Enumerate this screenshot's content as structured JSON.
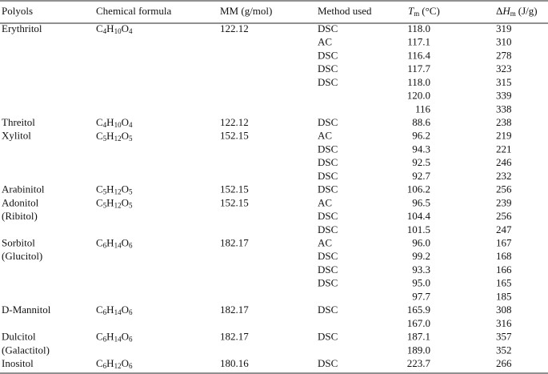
{
  "header": {
    "polyols": "Polyols",
    "formula": "Chemical formula",
    "mm": "MM (g/mol)",
    "method": "Method used",
    "tm": {
      "symbol": "T",
      "sub": "m",
      "unit": "(°C)"
    },
    "dh": {
      "prefix": "Δ",
      "symbol": "H",
      "sub": "m",
      "unit": "(J/g)"
    }
  },
  "table": {
    "rows": [
      {
        "polyol": "Erythritol",
        "formula": [
          "C",
          "4",
          "H",
          "10",
          "O",
          "4"
        ],
        "mm": "122.12",
        "method": "DSC",
        "tm": "118.0",
        "dh": "319"
      },
      {
        "method": "AC",
        "tm": "117.1",
        "dh": "310"
      },
      {
        "method": "DSC",
        "tm": "116.4",
        "dh": "278"
      },
      {
        "method": "DSC",
        "tm": "117.7",
        "dh": "323"
      },
      {
        "method": "DSC",
        "tm": "118.0",
        "dh": "315"
      },
      {
        "tm": "120.0",
        "dh": "339"
      },
      {
        "tm": "116",
        "dh": "338"
      },
      {
        "polyol": "Threitol",
        "formula": [
          "C",
          "4",
          "H",
          "10",
          "O",
          "4"
        ],
        "mm": "122.12",
        "method": "DSC",
        "tm": "88.6",
        "dh": "238"
      },
      {
        "polyol": "Xylitol",
        "formula": [
          "C",
          "5",
          "H",
          "12",
          "O",
          "5"
        ],
        "mm": "152.15",
        "method": "AC",
        "tm": "96.2",
        "dh": "219"
      },
      {
        "method": "DSC",
        "tm": "94.3",
        "dh": "221"
      },
      {
        "method": "DSC",
        "tm": "92.5",
        "dh": "246"
      },
      {
        "method": "DSC",
        "tm": "92.7",
        "dh": "232"
      },
      {
        "polyol": "Arabinitol",
        "formula": [
          "C",
          "5",
          "H",
          "12",
          "O",
          "5"
        ],
        "mm": "152.15",
        "method": "DSC",
        "tm": "106.2",
        "dh": "256"
      },
      {
        "polyol": "Adonitol",
        "formula": [
          "C",
          "5",
          "H",
          "12",
          "O",
          "5"
        ],
        "mm": "152.15",
        "method": "AC",
        "tm": "96.5",
        "dh": "239"
      },
      {
        "polyol": "(Ribitol)",
        "method": "DSC",
        "tm": "104.4",
        "dh": "256"
      },
      {
        "method": "DSC",
        "tm": "101.5",
        "dh": "247"
      },
      {
        "polyol": "Sorbitol",
        "formula": [
          "C",
          "6",
          "H",
          "14",
          "O",
          "6"
        ],
        "mm": "182.17",
        "method": "AC",
        "tm": "96.0",
        "dh": "167"
      },
      {
        "polyol": "(Glucitol)",
        "method": "DSC",
        "tm": "99.2",
        "dh": "168"
      },
      {
        "method": "DSC",
        "tm": "93.3",
        "dh": "166"
      },
      {
        "method": "DSC",
        "tm": "95.0",
        "dh": "165"
      },
      {
        "tm": "97.7",
        "dh": "185"
      },
      {
        "polyol": "D-Mannitol",
        "formula": [
          "C",
          "6",
          "H",
          "14",
          "O",
          "6"
        ],
        "mm": "182.17",
        "method": "DSC",
        "tm": "165.9",
        "dh": "308"
      },
      {
        "tm": "167.0",
        "dh": "316"
      },
      {
        "polyol": "Dulcitol",
        "formula": [
          "C",
          "6",
          "H",
          "14",
          "O",
          "6"
        ],
        "mm": "182.17",
        "method": "DSC",
        "tm": "187.1",
        "dh": "357"
      },
      {
        "polyol": "(Galactitol)",
        "tm": "189.0",
        "dh": "352"
      },
      {
        "polyol": "Inositol",
        "formula": [
          "C",
          "6",
          "H",
          "12",
          "O",
          "6"
        ],
        "mm": "180.16",
        "method": "DSC",
        "tm": "223.7",
        "dh": "266"
      }
    ]
  }
}
